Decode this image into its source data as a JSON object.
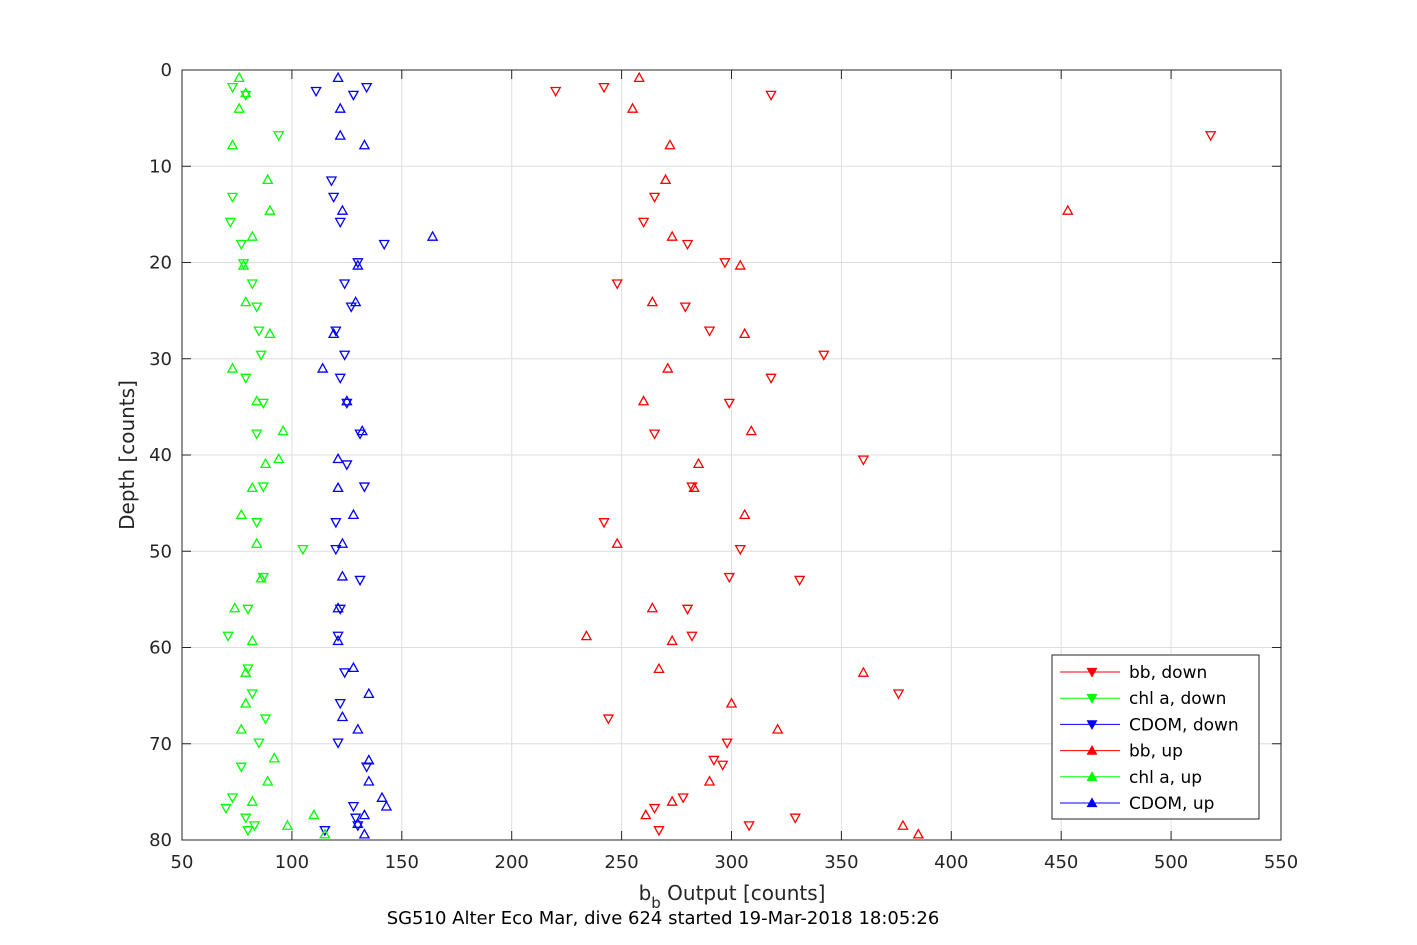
{
  "chart_data": {
    "type": "scatter",
    "title": "SG510 Alter Eco Mar, dive 624 started 19-Mar-2018 18:05:26",
    "xlabel_main": "b",
    "xlabel_sub": "b",
    "xlabel_rest": " Output [counts]",
    "ylabel": "Depth [counts]",
    "xlim": [
      50,
      550
    ],
    "ylim": [
      0,
      80
    ],
    "y_reversed": true,
    "x_ticks": [
      "50",
      "100",
      "150",
      "200",
      "250",
      "300",
      "350",
      "400",
      "450",
      "500",
      "550"
    ],
    "y_ticks": [
      "0",
      "10",
      "20",
      "30",
      "40",
      "50",
      "60",
      "70",
      "80"
    ],
    "grid": true,
    "legend_position": "bottom-right",
    "series": [
      {
        "name": "bb, down",
        "color": "#ff0000",
        "marker": "triangle-down",
        "points": [
          [
            220,
            2.2
          ],
          [
            242,
            1.8
          ],
          [
            318,
            2.6
          ],
          [
            518,
            6.8
          ],
          [
            265,
            13.2
          ],
          [
            260,
            15.8
          ],
          [
            280,
            18.1
          ],
          [
            297,
            20.0
          ],
          [
            248,
            22.2
          ],
          [
            279,
            24.6
          ],
          [
            290,
            27.1
          ],
          [
            342,
            29.6
          ],
          [
            318,
            32.0
          ],
          [
            299,
            34.6
          ],
          [
            265,
            37.8
          ],
          [
            360,
            40.5
          ],
          [
            282,
            43.3
          ],
          [
            242,
            47.0
          ],
          [
            304,
            49.8
          ],
          [
            299,
            52.7
          ],
          [
            331,
            53.0
          ],
          [
            280,
            56.0
          ],
          [
            282,
            58.8
          ],
          [
            376,
            64.8
          ],
          [
            244,
            67.4
          ],
          [
            298,
            69.9
          ],
          [
            292,
            71.7
          ],
          [
            296,
            72.2
          ],
          [
            278,
            75.6
          ],
          [
            265,
            76.7
          ],
          [
            329,
            77.7
          ],
          [
            308,
            78.5
          ],
          [
            267,
            79.0
          ]
        ]
      },
      {
        "name": "chl a, down",
        "color": "#00ff00",
        "marker": "triangle-down",
        "points": [
          [
            73,
            1.8
          ],
          [
            79,
            2.6
          ],
          [
            94,
            6.8
          ],
          [
            73,
            13.2
          ],
          [
            72,
            15.8
          ],
          [
            77,
            18.1
          ],
          [
            78,
            20.1
          ],
          [
            82,
            22.2
          ],
          [
            84,
            24.6
          ],
          [
            85,
            27.1
          ],
          [
            86,
            29.6
          ],
          [
            79,
            32.0
          ],
          [
            87,
            34.6
          ],
          [
            84,
            37.8
          ],
          [
            87,
            43.3
          ],
          [
            84,
            47.0
          ],
          [
            105,
            49.8
          ],
          [
            87,
            52.7
          ],
          [
            80,
            56.0
          ],
          [
            71,
            58.8
          ],
          [
            80,
            62.2
          ],
          [
            82,
            64.8
          ],
          [
            88,
            67.4
          ],
          [
            85,
            69.9
          ],
          [
            77,
            72.4
          ],
          [
            73,
            75.6
          ],
          [
            70,
            76.7
          ],
          [
            79,
            77.7
          ],
          [
            83,
            78.5
          ],
          [
            80,
            79.0
          ]
        ]
      },
      {
        "name": "CDOM, down",
        "color": "#0000ff",
        "marker": "triangle-down",
        "points": [
          [
            111,
            2.2
          ],
          [
            134,
            1.8
          ],
          [
            128,
            2.6
          ],
          [
            118,
            11.5
          ],
          [
            119,
            13.2
          ],
          [
            122,
            15.8
          ],
          [
            142,
            18.1
          ],
          [
            130,
            20.0
          ],
          [
            124,
            22.2
          ],
          [
            127,
            24.6
          ],
          [
            120,
            27.1
          ],
          [
            124,
            29.6
          ],
          [
            122,
            32.0
          ],
          [
            125,
            34.6
          ],
          [
            131,
            37.8
          ],
          [
            125,
            41.0
          ],
          [
            133,
            43.3
          ],
          [
            120,
            47.0
          ],
          [
            120,
            49.8
          ],
          [
            131,
            53.0
          ],
          [
            122,
            56.0
          ],
          [
            121,
            58.8
          ],
          [
            124,
            62.6
          ],
          [
            122,
            65.8
          ],
          [
            121,
            69.9
          ],
          [
            134,
            72.4
          ],
          [
            128,
            76.5
          ],
          [
            115,
            79.0
          ],
          [
            130,
            78.5
          ],
          [
            129,
            77.7
          ]
        ]
      },
      {
        "name": "bb, up",
        "color": "#ff0000",
        "marker": "triangle-up",
        "points": [
          [
            258,
            0.8
          ],
          [
            255,
            4.0
          ],
          [
            272,
            7.8
          ],
          [
            270,
            11.4
          ],
          [
            453,
            14.6
          ],
          [
            273,
            17.3
          ],
          [
            304,
            20.3
          ],
          [
            264,
            24.1
          ],
          [
            306,
            27.4
          ],
          [
            271,
            31.0
          ],
          [
            260,
            34.4
          ],
          [
            309,
            37.5
          ],
          [
            285,
            40.9
          ],
          [
            283,
            43.4
          ],
          [
            306,
            46.2
          ],
          [
            248,
            49.2
          ],
          [
            264,
            55.9
          ],
          [
            234,
            58.8
          ],
          [
            273,
            59.3
          ],
          [
            267,
            62.2
          ],
          [
            360,
            62.6
          ],
          [
            300,
            65.8
          ],
          [
            321,
            68.5
          ],
          [
            290,
            73.9
          ],
          [
            273,
            76.0
          ],
          [
            261,
            77.4
          ],
          [
            378,
            78.5
          ],
          [
            385,
            79.4
          ]
        ]
      },
      {
        "name": "chl a, up",
        "color": "#00ff00",
        "marker": "triangle-up",
        "points": [
          [
            76,
            0.8
          ],
          [
            79,
            2.4
          ],
          [
            76,
            4.0
          ],
          [
            73,
            7.8
          ],
          [
            89,
            11.4
          ],
          [
            90,
            14.6
          ],
          [
            82,
            17.3
          ],
          [
            78,
            20.3
          ],
          [
            79,
            24.1
          ],
          [
            90,
            27.4
          ],
          [
            73,
            31.0
          ],
          [
            84,
            34.4
          ],
          [
            96,
            37.5
          ],
          [
            94,
            40.4
          ],
          [
            88,
            40.9
          ],
          [
            82,
            43.4
          ],
          [
            77,
            46.2
          ],
          [
            84,
            49.2
          ],
          [
            86,
            52.8
          ],
          [
            74,
            55.9
          ],
          [
            82,
            59.3
          ],
          [
            79,
            62.6
          ],
          [
            79,
            65.8
          ],
          [
            77,
            68.5
          ],
          [
            92,
            71.5
          ],
          [
            89,
            73.9
          ],
          [
            82,
            76.0
          ],
          [
            110,
            77.4
          ],
          [
            98,
            78.5
          ],
          [
            115,
            79.4
          ]
        ]
      },
      {
        "name": "CDOM, up",
        "color": "#0000ff",
        "marker": "triangle-up",
        "points": [
          [
            121,
            0.8
          ],
          [
            122,
            4.0
          ],
          [
            122,
            6.8
          ],
          [
            133,
            7.8
          ],
          [
            123,
            14.6
          ],
          [
            164,
            17.3
          ],
          [
            130,
            20.3
          ],
          [
            129,
            24.1
          ],
          [
            119,
            27.4
          ],
          [
            114,
            31.0
          ],
          [
            125,
            34.4
          ],
          [
            132,
            37.5
          ],
          [
            121,
            40.4
          ],
          [
            121,
            43.4
          ],
          [
            128,
            46.2
          ],
          [
            123,
            49.2
          ],
          [
            123,
            52.6
          ],
          [
            121,
            55.9
          ],
          [
            121,
            59.3
          ],
          [
            128,
            62.1
          ],
          [
            135,
            64.8
          ],
          [
            123,
            67.2
          ],
          [
            130,
            68.5
          ],
          [
            135,
            71.7
          ],
          [
            135,
            73.9
          ],
          [
            141,
            75.6
          ],
          [
            143,
            76.5
          ],
          [
            133,
            77.4
          ],
          [
            130,
            78.3
          ],
          [
            133,
            79.4
          ]
        ]
      }
    ]
  }
}
